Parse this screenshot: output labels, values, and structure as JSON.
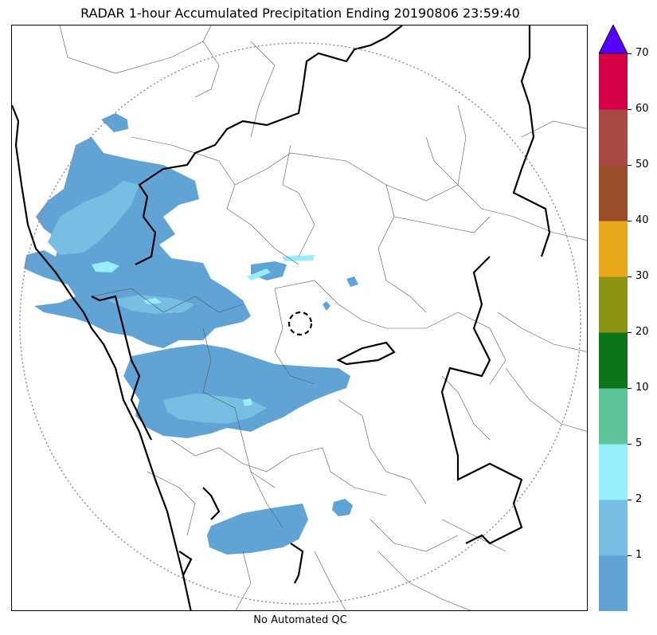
{
  "title": "RADAR 1-hour Accumulated Precipitation Ending 20190806 23:59:40",
  "footer": "No Automated QC",
  "colorbar": {
    "bins": [
      {
        "lower": 0,
        "upper": 1,
        "color": "#62a3d6"
      },
      {
        "lower": 1,
        "upper": 2,
        "color": "#77bee3"
      },
      {
        "lower": 2,
        "upper": 5,
        "color": "#96eefc"
      },
      {
        "lower": 5,
        "upper": 10,
        "color": "#5dc49a"
      },
      {
        "lower": 10,
        "upper": 20,
        "color": "#0d7519"
      },
      {
        "lower": 20,
        "upper": 30,
        "color": "#8b9313"
      },
      {
        "lower": 30,
        "upper": 40,
        "color": "#e8a81b"
      },
      {
        "lower": 40,
        "upper": 50,
        "color": "#994e28"
      },
      {
        "lower": 50,
        "upper": 60,
        "color": "#a84842"
      },
      {
        "lower": 60,
        "upper": 70,
        "color": "#d40045"
      }
    ],
    "extend_max_color": "#5500ff",
    "tick_labels": [
      "1",
      "2",
      "5",
      "10",
      "20",
      "30",
      "40",
      "50",
      "60",
      "70"
    ]
  },
  "radar_range_ring": {
    "style": "dotted",
    "color": "#888888"
  },
  "radar_site_marker": {
    "style": "dashed circle",
    "color": "#000000"
  }
}
